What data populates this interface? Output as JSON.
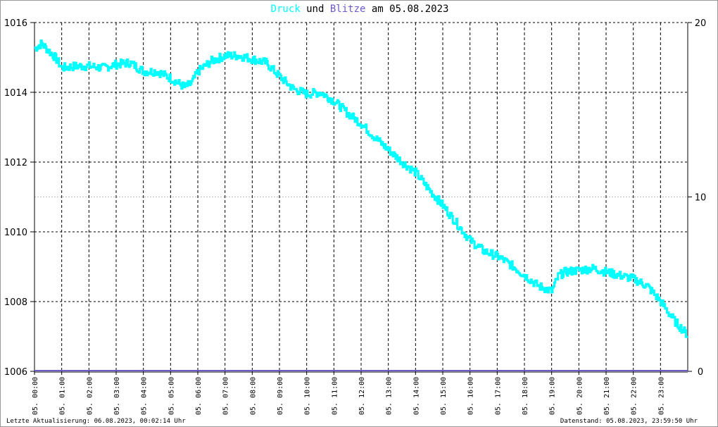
{
  "chart_data": {
    "type": "line",
    "title_parts": [
      {
        "text": "Druck",
        "color": "#00ffff"
      },
      {
        "text": " und ",
        "color": "#000000"
      },
      {
        "text": "Blitze",
        "color": "#6a5acd"
      },
      {
        "text": " am 05.08.2023",
        "color": "#000000"
      }
    ],
    "x_ticks": [
      "05. 00:00",
      "05. 01:00",
      "05. 02:00",
      "05. 03:00",
      "05. 04:00",
      "05. 05:00",
      "05. 06:00",
      "05. 07:00",
      "05. 08:00",
      "05. 09:00",
      "05. 10:00",
      "05. 11:00",
      "05. 12:00",
      "05. 13:00",
      "05. 14:00",
      "05. 15:00",
      "05. 16:00",
      "05. 17:00",
      "05. 18:00",
      "05. 19:00",
      "05. 20:00",
      "05. 21:00",
      "05. 22:00",
      "05. 23:00"
    ],
    "xlim_hours": [
      0,
      24
    ],
    "y_left": {
      "range": [
        1006,
        1016
      ],
      "ticks": [
        "1006",
        "1008",
        "1010",
        "1012",
        "1014",
        "1016"
      ]
    },
    "y_right": {
      "range": [
        0,
        20
      ],
      "ticks": [
        "0",
        "10",
        "20"
      ]
    },
    "grid": true,
    "series": [
      {
        "name": "Druck",
        "color": "#00ffff",
        "x_hours": [
          0,
          0.25,
          0.5,
          0.75,
          1,
          1.5,
          2,
          2.5,
          3,
          3.5,
          4,
          4.5,
          5,
          5.5,
          5.75,
          6,
          6.5,
          7,
          7.5,
          8,
          8.5,
          9,
          9.5,
          10,
          10.5,
          11,
          11.5,
          12,
          12.5,
          13,
          13.5,
          14,
          14.5,
          15,
          15.5,
          16,
          16.5,
          17,
          17.5,
          18,
          18.5,
          19,
          19.25,
          19.5,
          20,
          20.5,
          21,
          21.5,
          22,
          22.5,
          23,
          23.5,
          23.98
        ],
        "values": [
          1015.25,
          1015.4,
          1015.2,
          1015.0,
          1014.7,
          1014.75,
          1014.75,
          1014.7,
          1014.8,
          1014.85,
          1014.6,
          1014.6,
          1014.4,
          1014.15,
          1014.25,
          1014.6,
          1014.9,
          1015.05,
          1015.05,
          1014.95,
          1014.85,
          1014.45,
          1014.1,
          1013.95,
          1014.0,
          1013.75,
          1013.4,
          1013.1,
          1012.7,
          1012.35,
          1012.0,
          1011.7,
          1011.2,
          1010.75,
          1010.25,
          1009.75,
          1009.45,
          1009.3,
          1009.05,
          1008.75,
          1008.45,
          1008.3,
          1008.75,
          1008.85,
          1008.9,
          1008.95,
          1008.85,
          1008.75,
          1008.65,
          1008.45,
          1008.0,
          1007.45,
          1007.05
        ]
      },
      {
        "name": "Blitze",
        "color": "#6a5acd",
        "x_hours": [
          0,
          24
        ],
        "values": [
          0,
          0
        ]
      }
    ]
  },
  "footer": {
    "left": "Letzte Aktualisierung: 06.08.2023, 00:02:14 Uhr",
    "right": "Datenstand: 05.08.2023, 23:59:50 Uhr"
  }
}
